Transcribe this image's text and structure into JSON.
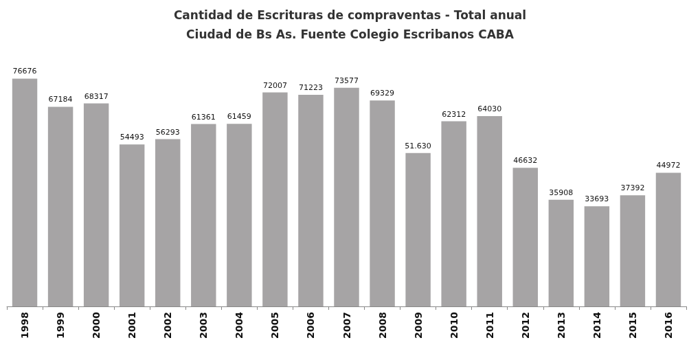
{
  "chart_data": {
    "type": "bar",
    "title": "Cantidad de Escrituras de compraventas - Total anual",
    "subtitle": "Ciudad de Bs As. Fuente Colegio Escribanos CABA",
    "categories": [
      "1998",
      "1999",
      "2000",
      "2001",
      "2002",
      "2003",
      "2004",
      "2005",
      "2006",
      "2007",
      "2008",
      "2009",
      "2010",
      "2011",
      "2012",
      "2013",
      "2014",
      "2015",
      "2016"
    ],
    "values": [
      76676,
      67184,
      68317,
      54493,
      56293,
      61361,
      61459,
      72007,
      71223,
      73577,
      69329,
      51630,
      62312,
      64030,
      46632,
      35908,
      33693,
      37392,
      44972
    ],
    "value_labels": [
      "76676",
      "67184",
      "68317",
      "54493",
      "56293",
      "61361",
      "61459",
      "72007",
      "71223",
      "73577",
      "69329",
      "51.630",
      "62312",
      "64030",
      "46632",
      "35908",
      "33693",
      "37392",
      "44972"
    ],
    "color": "#a6a4a5"
  }
}
